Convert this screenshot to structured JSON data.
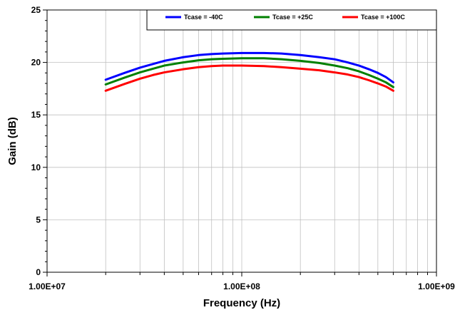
{
  "chart_data": {
    "type": "line",
    "xlabel": "Frequency (Hz)",
    "ylabel": "Gain (dB)",
    "x_scale": "log",
    "xlim": [
      10000000,
      1000000000
    ],
    "ylim": [
      0,
      25
    ],
    "x_ticks": [
      {
        "value": 10000000,
        "label": "1.00E+07"
      },
      {
        "value": 100000000,
        "label": "1.00E+08"
      },
      {
        "value": 1000000000,
        "label": "1.00E+09"
      }
    ],
    "y_ticks": [
      {
        "value": 0,
        "label": "0"
      },
      {
        "value": 5,
        "label": "5"
      },
      {
        "value": 10,
        "label": "10"
      },
      {
        "value": 15,
        "label": "15"
      },
      {
        "value": 20,
        "label": "20"
      },
      {
        "value": 25,
        "label": "25"
      }
    ],
    "grid": true,
    "legend_position": "top-right",
    "x": [
      20000000,
      25000000,
      30000000,
      35000000,
      40000000,
      50000000,
      60000000,
      70000000,
      80000000,
      100000000,
      130000000,
      160000000,
      200000000,
      250000000,
      300000000,
      350000000,
      400000000,
      450000000,
      500000000,
      550000000,
      600000000
    ],
    "series": [
      {
        "name": "Tcase = -40C",
        "color": "#0000ff",
        "values": [
          18.35,
          19.0,
          19.5,
          19.85,
          20.15,
          20.5,
          20.7,
          20.8,
          20.85,
          20.9,
          20.9,
          20.85,
          20.7,
          20.5,
          20.3,
          20.0,
          19.7,
          19.35,
          19.0,
          18.6,
          18.1
        ]
      },
      {
        "name": "Tcase = +25C",
        "color": "#008000",
        "values": [
          17.9,
          18.55,
          19.05,
          19.4,
          19.7,
          20.0,
          20.2,
          20.3,
          20.35,
          20.4,
          20.4,
          20.3,
          20.15,
          19.95,
          19.7,
          19.45,
          19.15,
          18.8,
          18.45,
          18.1,
          17.65
        ]
      },
      {
        "name": "Tcase = +100C",
        "color": "#ff0000",
        "values": [
          17.3,
          17.95,
          18.45,
          18.8,
          19.05,
          19.35,
          19.55,
          19.65,
          19.7,
          19.7,
          19.65,
          19.55,
          19.4,
          19.25,
          19.05,
          18.85,
          18.6,
          18.3,
          18.0,
          17.7,
          17.3
        ]
      }
    ]
  }
}
